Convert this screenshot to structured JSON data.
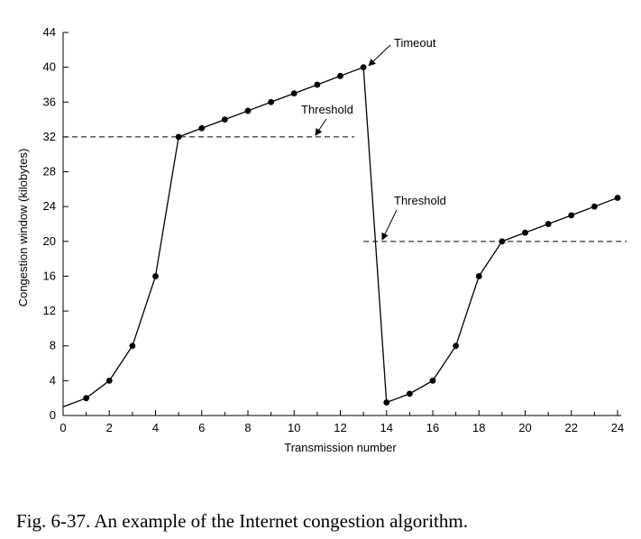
{
  "chart_data": {
    "type": "line",
    "xlabel": "Transmission number",
    "ylabel": "Congestion window (kilobytes)",
    "xlim": [
      0,
      24
    ],
    "ylim": [
      0,
      44
    ],
    "xticks": [
      0,
      2,
      4,
      6,
      8,
      10,
      12,
      14,
      16,
      18,
      20,
      22,
      24
    ],
    "yticks": [
      0,
      4,
      8,
      12,
      16,
      20,
      24,
      28,
      32,
      36,
      40,
      44
    ],
    "grid": false,
    "series": [
      {
        "x": [
          0,
          1,
          2,
          3,
          4,
          5,
          6,
          7,
          8,
          9,
          10,
          11,
          12,
          13,
          14,
          15,
          16,
          17,
          18,
          19,
          20,
          21,
          22,
          23,
          24
        ],
        "y": [
          1,
          2,
          4,
          8,
          16,
          32,
          33,
          34,
          35,
          36,
          37,
          38,
          39,
          40,
          1.5,
          2.5,
          4,
          8,
          16,
          20,
          21,
          22,
          23,
          24,
          25
        ],
        "markers_from_index": 1
      }
    ],
    "thresholds": [
      {
        "y": 32,
        "x_start": 0,
        "x_end": 12.6,
        "label": "Threshold"
      },
      {
        "y": 20,
        "x_start": 13,
        "x_end": 24.4,
        "label": "Threshold"
      }
    ],
    "annotations": [
      {
        "label": "Timeout",
        "x": 13,
        "y": 40
      }
    ]
  },
  "caption": "Fig. 6-37. An example of the Internet congestion algorithm."
}
